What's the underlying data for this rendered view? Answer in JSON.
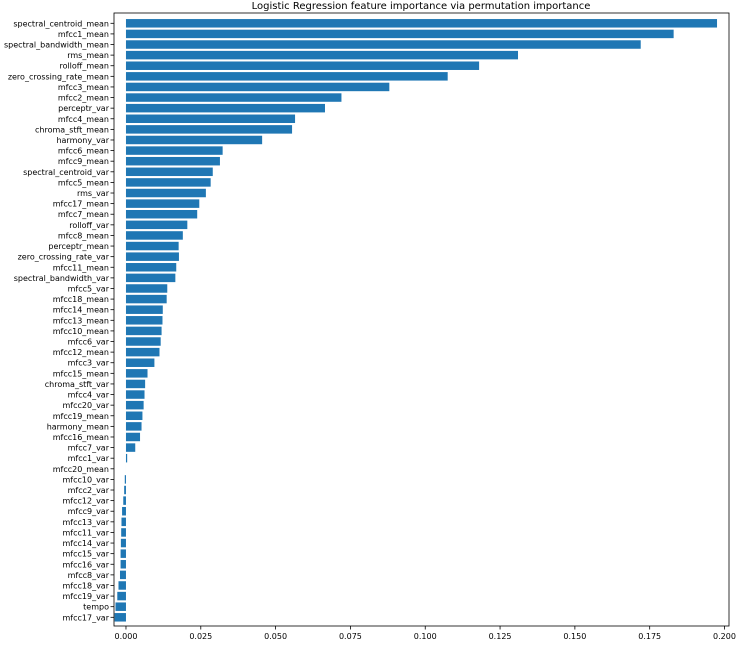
{
  "chart_data": {
    "type": "bar",
    "orientation": "horizontal",
    "title": "Logistic Regression feature importance via permutation importance",
    "xlabel": "",
    "ylabel": "",
    "xlim": [
      -0.004,
      0.2015
    ],
    "xticks": [
      0.0,
      0.025,
      0.05,
      0.075,
      0.1,
      0.125,
      0.15,
      0.175,
      0.2
    ],
    "xtick_labels": [
      "0.000",
      "0.025",
      "0.050",
      "0.075",
      "0.100",
      "0.125",
      "0.150",
      "0.175",
      "0.200"
    ],
    "bar_color": "#1f77b4",
    "grid": false,
    "categories": [
      "spectral_centroid_mean",
      "mfcc1_mean",
      "spectral_bandwidth_mean",
      "rms_mean",
      "rolloff_mean",
      "zero_crossing_rate_mean",
      "mfcc3_mean",
      "mfcc2_mean",
      "perceptr_var",
      "mfcc4_mean",
      "chroma_stft_mean",
      "harmony_var",
      "mfcc6_mean",
      "mfcc9_mean",
      "spectral_centroid_var",
      "mfcc5_mean",
      "rms_var",
      "mfcc17_mean",
      "mfcc7_mean",
      "rolloff_var",
      "mfcc8_mean",
      "perceptr_mean",
      "zero_crossing_rate_var",
      "mfcc11_mean",
      "spectral_bandwidth_var",
      "mfcc5_var",
      "mfcc18_mean",
      "mfcc14_mean",
      "mfcc13_mean",
      "mfcc10_mean",
      "mfcc6_var",
      "mfcc12_mean",
      "mfcc3_var",
      "mfcc15_mean",
      "chroma_stft_var",
      "mfcc4_var",
      "mfcc20_var",
      "mfcc19_mean",
      "harmony_mean",
      "mfcc16_mean",
      "mfcc7_var",
      "mfcc1_var",
      "mfcc20_mean",
      "mfcc10_var",
      "mfcc2_var",
      "mfcc12_var",
      "mfcc9_var",
      "mfcc13_var",
      "mfcc11_var",
      "mfcc14_var",
      "mfcc15_var",
      "mfcc16_var",
      "mfcc8_var",
      "mfcc18_var",
      "mfcc19_var",
      "tempo",
      "mfcc17_var"
    ],
    "values": [
      0.1975,
      0.183,
      0.172,
      0.131,
      0.118,
      0.1075,
      0.088,
      0.072,
      0.0665,
      0.0565,
      0.0555,
      0.0455,
      0.0323,
      0.0314,
      0.029,
      0.0283,
      0.0267,
      0.0245,
      0.0238,
      0.0205,
      0.019,
      0.0176,
      0.0177,
      0.0168,
      0.0165,
      0.0138,
      0.0136,
      0.0123,
      0.0122,
      0.0119,
      0.0116,
      0.0112,
      0.0095,
      0.0072,
      0.0064,
      0.0062,
      0.0059,
      0.0055,
      0.0052,
      0.0047,
      0.0031,
      0.0004,
      0.0,
      -0.0004,
      -0.0006,
      -0.0009,
      -0.0013,
      -0.0015,
      -0.0016,
      -0.0017,
      -0.0018,
      -0.0018,
      -0.002,
      -0.0025,
      -0.0029,
      -0.0035,
      -0.0038
    ]
  }
}
